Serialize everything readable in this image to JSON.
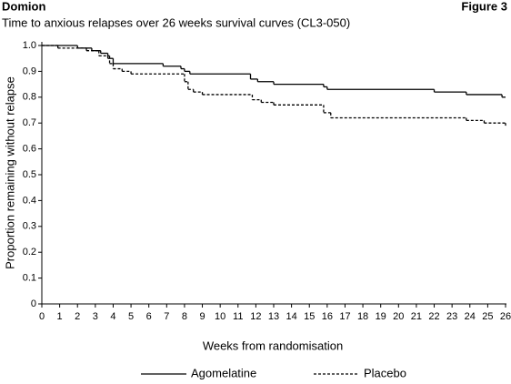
{
  "header": {
    "left": "Domion",
    "right": "Figure 3"
  },
  "chart_data": {
    "type": "line",
    "step": "post",
    "title": "Time to anxious relapses over 26 weeks survival curves (CL3-050)",
    "xlabel": "Weeks from randomisation",
    "ylabel": "Proportion remaining without relapse",
    "xlim": [
      0,
      26
    ],
    "xticks": [
      0,
      1,
      2,
      3,
      4,
      5,
      6,
      7,
      8,
      9,
      10,
      11,
      12,
      13,
      14,
      15,
      16,
      17,
      18,
      19,
      20,
      21,
      22,
      23,
      24,
      25,
      26
    ],
    "ylim": [
      0,
      1
    ],
    "yticks": [
      0,
      0.1,
      0.2,
      0.3,
      0.4,
      0.5,
      0.6,
      0.7,
      0.8,
      0.9,
      {
        "value": 1,
        "label": "1.0"
      }
    ],
    "legend": "bottom",
    "series": [
      {
        "name": "Agomelatine",
        "color": "#000000",
        "dash": "solid",
        "x": [
          0,
          2,
          2.8,
          3.3,
          3.7,
          4,
          6.8,
          7.8,
          8,
          8.3,
          11.7,
          12.1,
          13,
          15.8,
          16,
          22,
          23.8,
          25.8
        ],
        "values": [
          1.0,
          0.99,
          0.98,
          0.97,
          0.95,
          0.93,
          0.92,
          0.91,
          0.9,
          0.89,
          0.87,
          0.86,
          0.85,
          0.84,
          0.83,
          0.82,
          0.81,
          0.8
        ]
      },
      {
        "name": "Placebo",
        "color": "#000000",
        "dash": "dashed",
        "x": [
          0,
          0.9,
          2.5,
          3.2,
          3.8,
          4,
          4.5,
          5,
          8,
          8.2,
          8.5,
          9,
          11.8,
          12.3,
          13,
          15.8,
          16.2,
          23.8,
          24.8,
          26
        ],
        "values": [
          1.0,
          0.99,
          0.98,
          0.96,
          0.93,
          0.91,
          0.9,
          0.89,
          0.86,
          0.83,
          0.82,
          0.81,
          0.79,
          0.78,
          0.77,
          0.74,
          0.72,
          0.71,
          0.7,
          0.69
        ]
      }
    ]
  }
}
